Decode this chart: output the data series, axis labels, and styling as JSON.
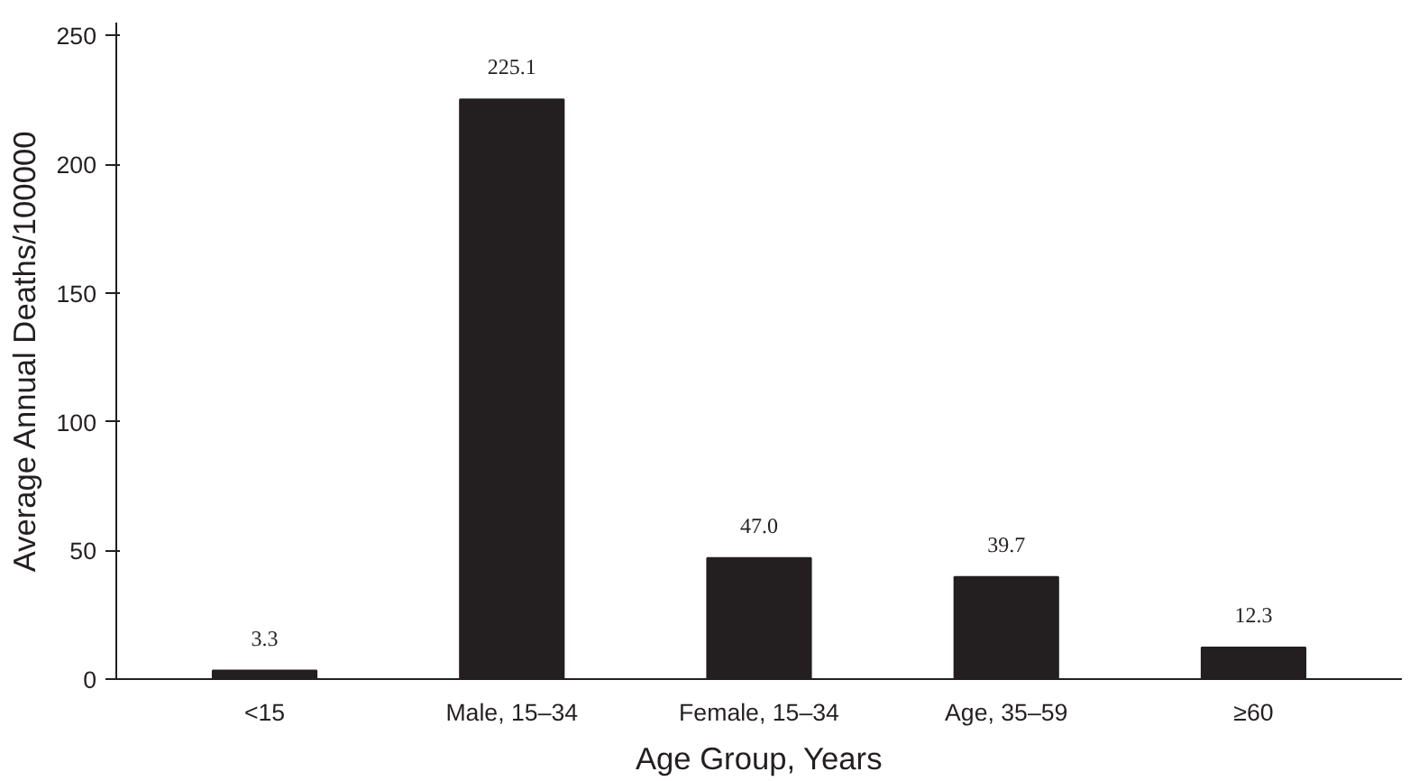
{
  "chart_data": {
    "type": "bar",
    "xlabel": "Age Group, Years",
    "ylabel": "Average Annual Deaths/100000",
    "categories": [
      "<15",
      "Male, 15–34",
      "Female, 15–34",
      "Age, 35–59",
      "≥60"
    ],
    "values": [
      3.3,
      225.1,
      47.0,
      39.7,
      12.3
    ],
    "value_labels": [
      "3.3",
      "225.1",
      "47.0",
      "39.7",
      "12.3"
    ],
    "color": "#231f20",
    "ylim": [
      0,
      255
    ],
    "yticks": [
      0,
      50,
      100,
      150,
      200,
      250
    ],
    "grid": false
  }
}
